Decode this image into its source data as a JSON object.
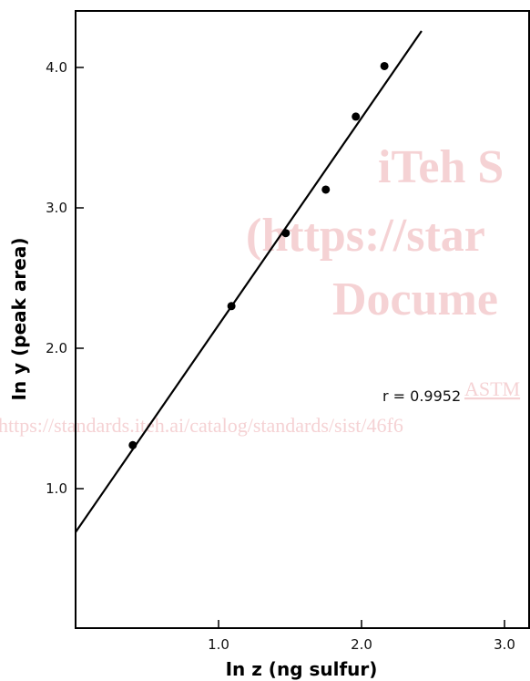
{
  "chart_data": {
    "type": "scatter",
    "title": "",
    "xlabel": "In z (ng sulfur)",
    "ylabel": "In y (peak area)",
    "xlim": [
      0,
      3.1
    ],
    "ylim": [
      0,
      4.4
    ],
    "x_ticks": [
      {
        "value": 1.0,
        "label": "1.0"
      },
      {
        "value": 2.0,
        "label": "2.0"
      },
      {
        "value": 3.0,
        "label": "3.0"
      }
    ],
    "y_ticks": [
      {
        "value": 1.0,
        "label": "1.0"
      },
      {
        "value": 2.0,
        "label": "2.0"
      },
      {
        "value": 3.0,
        "label": "3.0"
      },
      {
        "value": 4.0,
        "label": "4.0"
      }
    ],
    "points": [
      {
        "x": 0.4,
        "y": 1.31
      },
      {
        "x": 1.09,
        "y": 2.3
      },
      {
        "x": 1.47,
        "y": 2.82
      },
      {
        "x": 1.75,
        "y": 3.13
      },
      {
        "x": 1.96,
        "y": 3.65
      },
      {
        "x": 2.16,
        "y": 4.01
      }
    ],
    "fit_line": {
      "x1": 0.0,
      "y1": 0.69,
      "x2": 2.42,
      "y2": 4.26
    },
    "annotation": "r = 0.9952",
    "grid": false
  },
  "watermark": {
    "line1": "iTeh S",
    "line2": "(https://star",
    "line3": "Docume",
    "link": "ASTM",
    "url": "https://standards.iteh.ai/catalog/standards/sist/46f6"
  }
}
